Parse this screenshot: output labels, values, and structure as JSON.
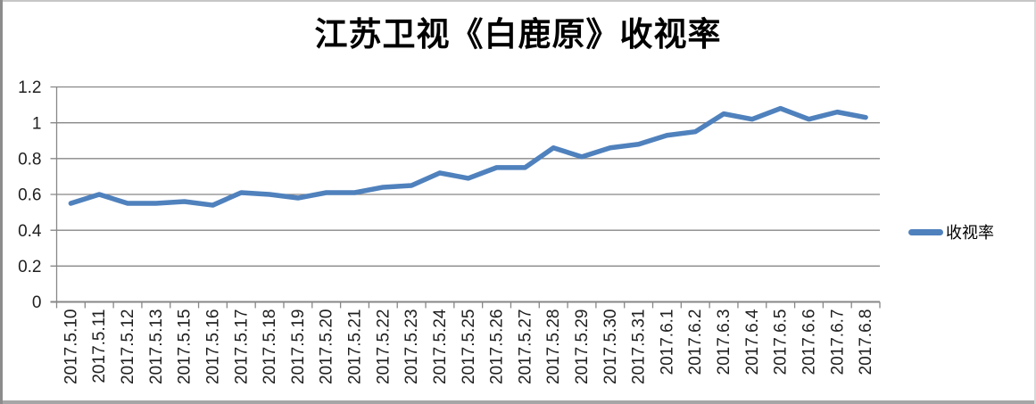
{
  "chart_data": {
    "type": "line",
    "title": "江苏卫视《白鹿原》收视率",
    "categories": [
      "2017.5.10",
      "2017.5.11",
      "2017.5.12",
      "2017.5.13",
      "2017.5.15",
      "2017.5.16",
      "2017.5.17",
      "2017.5.18",
      "2017.5.19",
      "2017.5.20",
      "2017.5.21",
      "2017.5.22",
      "2017.5.23",
      "2017.5.24",
      "2017.5.25",
      "2017.5.26",
      "2017.5.27",
      "2017.5.28",
      "2017.5.29",
      "2017.5.30",
      "2017.5.31",
      "2017.6.1",
      "2017.6.2",
      "2017.6.3",
      "2017.6.4",
      "2017.6.5",
      "2017.6.6",
      "2017.6.7",
      "2017.6.8"
    ],
    "series": [
      {
        "name": "收视率",
        "values": [
          0.55,
          0.6,
          0.55,
          0.55,
          0.56,
          0.54,
          0.61,
          0.6,
          0.58,
          0.61,
          0.61,
          0.64,
          0.65,
          0.72,
          0.69,
          0.75,
          0.75,
          0.86,
          0.81,
          0.86,
          0.88,
          0.93,
          0.95,
          1.05,
          1.02,
          1.08,
          1.02,
          1.06,
          1.03
        ],
        "color": "#4F81BD"
      }
    ],
    "xlabel": "",
    "ylabel": "",
    "ylim": [
      0,
      1.2
    ],
    "ytick_labels": [
      "0",
      "0.2",
      "0.4",
      "0.6",
      "0.8",
      "1",
      "1.2"
    ],
    "yticks": [
      0,
      0.2,
      0.4,
      0.6,
      0.8,
      1,
      1.2
    ],
    "grid": true,
    "grid_color": "#878787",
    "axis_text_color": "#1f1f1f",
    "legend_position": "right",
    "x_label_rotation": -90
  }
}
